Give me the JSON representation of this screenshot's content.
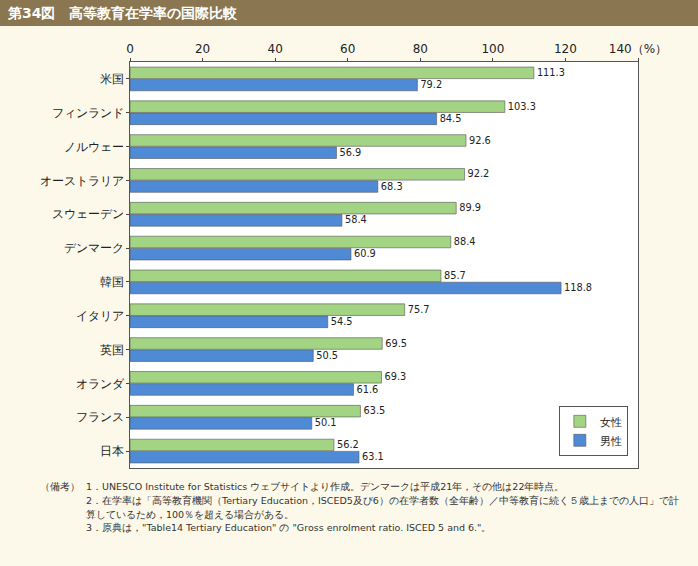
{
  "chart_data": {
    "type": "bar",
    "title": "第34図　高等教育在学率の国際比較",
    "orientation": "horizontal",
    "data_labels": true,
    "grid": false,
    "legend": "lower right",
    "categories": [
      "米国",
      "フィンランド",
      "ノルウェー",
      "オーストラリア",
      "スウェーデン",
      "デンマーク",
      "韓国",
      "イタリア",
      "英国",
      "オランダ",
      "フランス",
      "日本"
    ],
    "series": [
      {
        "name": "女性",
        "color": "#a3d483",
        "values": [
          111.3,
          103.3,
          92.6,
          92.2,
          89.9,
          88.4,
          85.7,
          75.7,
          69.5,
          69.3,
          63.5,
          56.2
        ]
      },
      {
        "name": "男性",
        "color": "#4f8ad6",
        "values": [
          79.2,
          84.5,
          56.9,
          68.3,
          58.4,
          60.9,
          118.8,
          54.5,
          50.5,
          61.6,
          50.1,
          63.1
        ]
      }
    ],
    "xlim": [
      0,
      140
    ],
    "xticks": [
      0,
      20,
      40,
      60,
      80,
      100,
      120,
      {
        "value": 140,
        "label": "140（%）"
      }
    ],
    "notes": {
      "label": "（備考）",
      "items": [
        "1．UNESCO Institute for Statistics ウェブサイトより作成。デンマークは平成21年，その他は22年時点。",
        "2．在学率は「高等教育機関（Tertiary Education，ISCED5及び6）の在学者数（全年齢）／中等教育に続く５歳上までの人口」で計算しているため，100％を超える場合がある。",
        "3．原典は，\"Table14 Tertiary Education\" の \"Gross enrolment ratio. ISCED 5 and 6.\"。"
      ]
    }
  }
}
